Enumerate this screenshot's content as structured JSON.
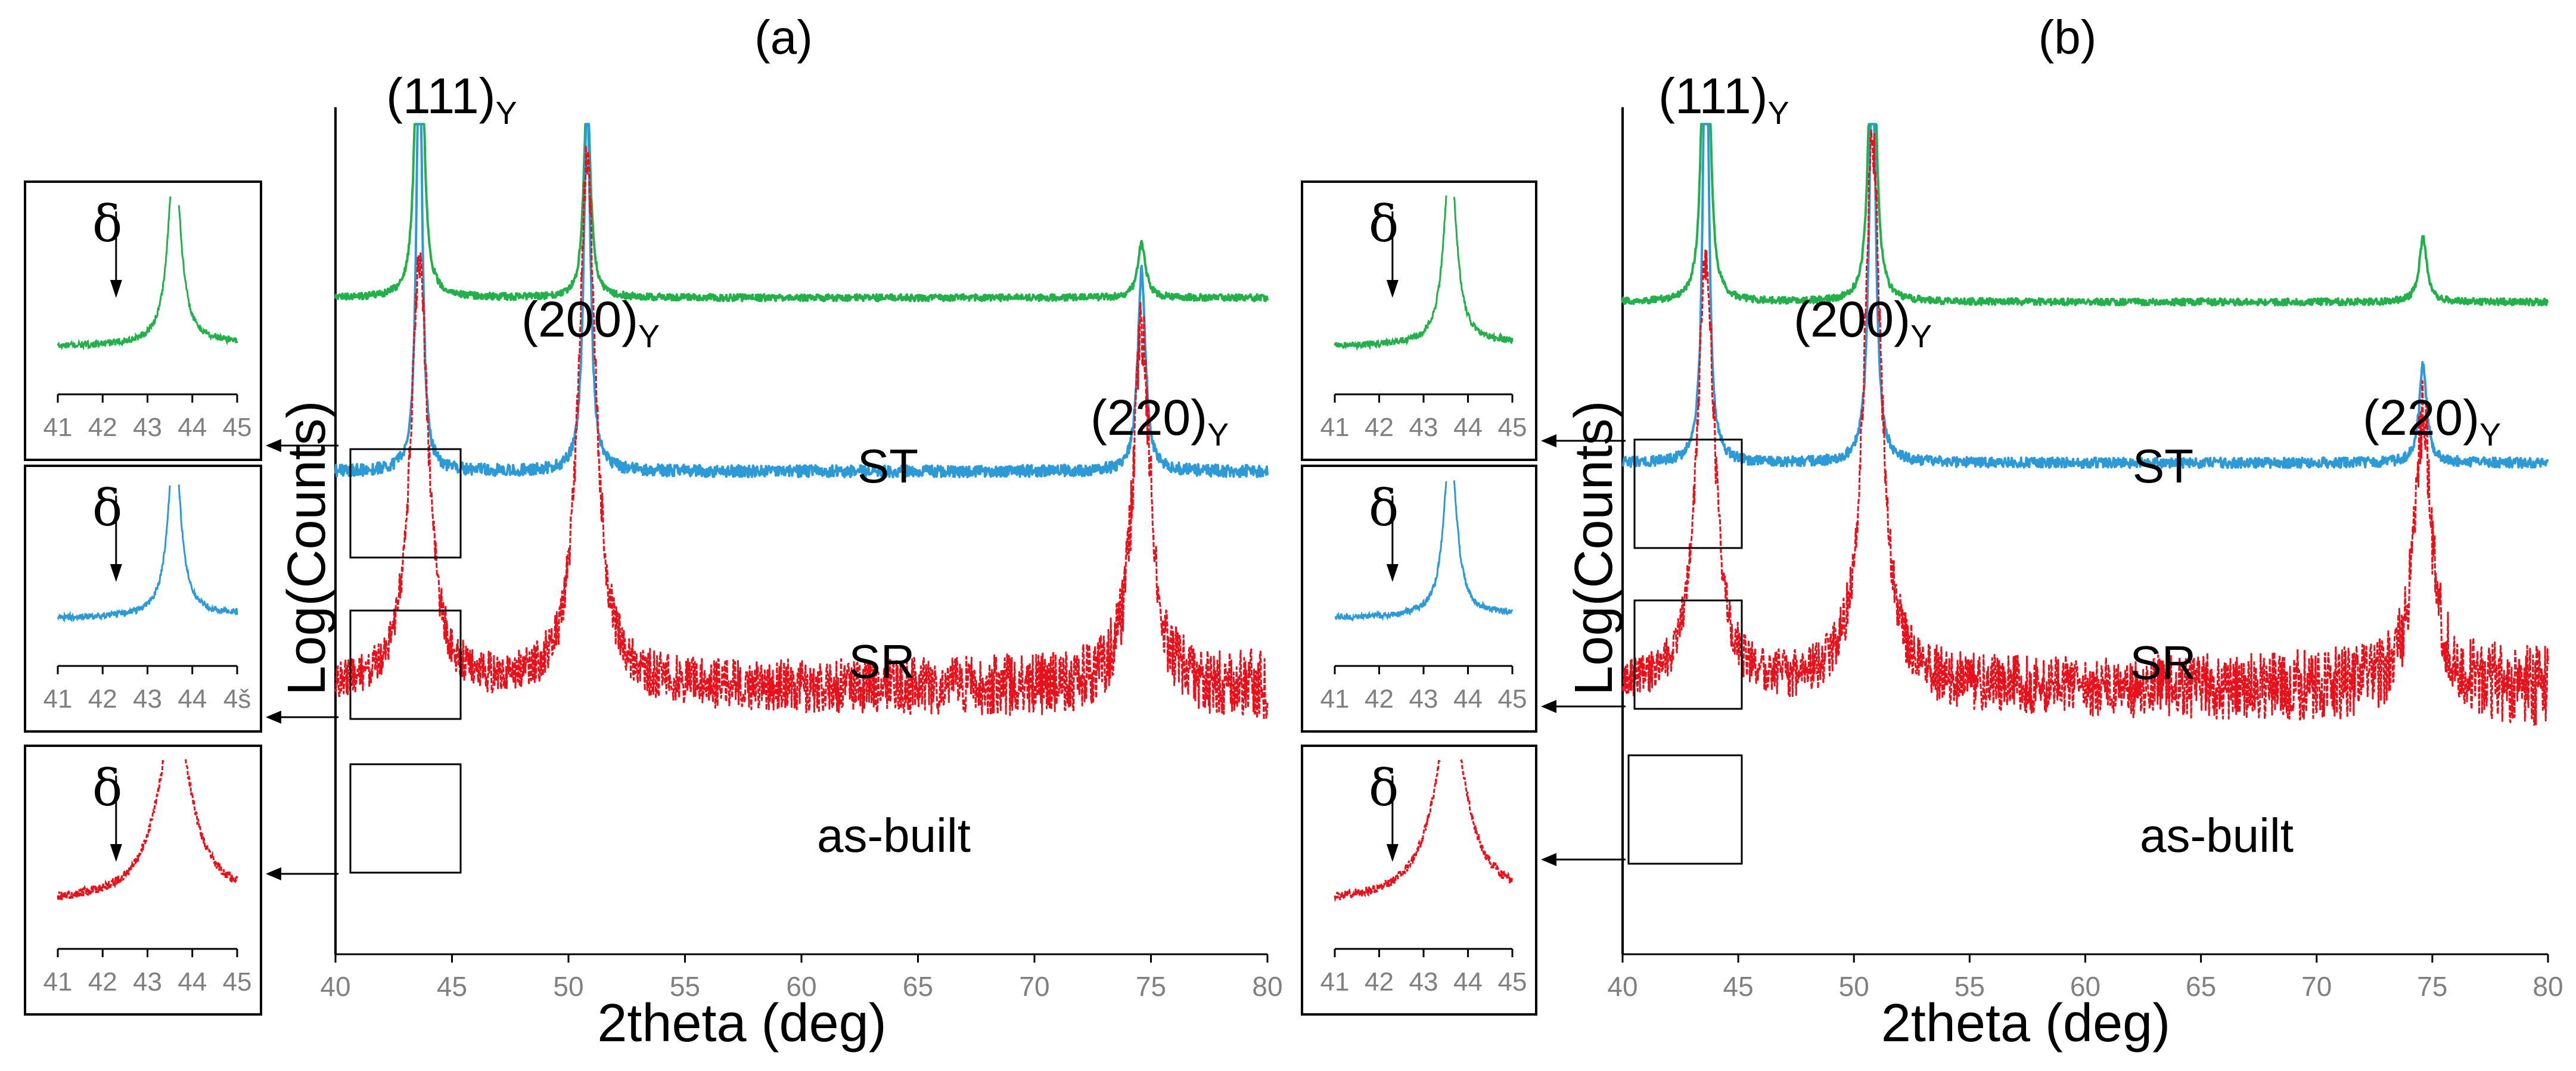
{
  "chart_data": [
    {
      "panel": "(a)",
      "type": "line",
      "xlabel": "2theta (deg)",
      "ylabel": "Log(Counts)",
      "xlim": [
        40,
        80
      ],
      "x_ticks": [
        "40",
        "45",
        "50",
        "55",
        "60",
        "65",
        "70",
        "75",
        "80"
      ],
      "y_scale": "log",
      "grid": false,
      "peaks": [
        {
          "name": "(111)",
          "sub": "Y",
          "x": 43.6
        },
        {
          "name": "(200)",
          "sub": "Y",
          "x": 50.8
        },
        {
          "name": "(220)",
          "sub": "Y",
          "x": 74.6
        }
      ],
      "series": [
        {
          "name": "ST",
          "color": "#22b04b",
          "baseline": 0.225,
          "noise": 0.004,
          "peaks": [
            {
              "x": 43.6,
              "h": 0.68,
              "w": 0.14
            },
            {
              "x": 50.8,
              "h": 0.25,
              "w": 0.17
            },
            {
              "x": 74.6,
              "h": 0.065,
              "w": 0.2
            }
          ]
        },
        {
          "name": "SR",
          "color": "#2c9ad6",
          "baseline": 0.43,
          "noise": 0.007,
          "peaks": [
            {
              "x": 43.6,
              "h": 0.56,
              "w": 0.14
            },
            {
              "x": 50.8,
              "h": 0.45,
              "w": 0.17
            },
            {
              "x": 74.6,
              "h": 0.24,
              "w": 0.2
            }
          ]
        },
        {
          "name": "as-built",
          "color": "#e8101a",
          "baseline": 0.685,
          "noise": 0.035,
          "dashed": true,
          "peaks": [
            {
              "x": 43.6,
              "h": 0.5,
              "w": 0.45
            },
            {
              "x": 50.8,
              "h": 0.62,
              "w": 0.45
            },
            {
              "x": 74.6,
              "h": 0.42,
              "w": 0.45
            }
          ]
        }
      ],
      "insets": [
        {
          "series": "ST",
          "annotation": "δ",
          "xlim": [
            41,
            45
          ],
          "x_ticks": [
            "41",
            "42",
            "43",
            "44",
            "45"
          ],
          "arrow_x": 42.3
        },
        {
          "series": "SR",
          "annotation": "δ",
          "xlim": [
            41,
            45
          ],
          "x_ticks": [
            "41",
            "42",
            "43",
            "44",
            "4š"
          ],
          "arrow_x": 42.3
        },
        {
          "series": "as-built",
          "annotation": "δ",
          "xlim": [
            41,
            45
          ],
          "x_ticks": [
            "41",
            "42",
            "43",
            "44",
            "45"
          ],
          "arrow_x": 42.3
        }
      ]
    },
    {
      "panel": "(b)",
      "type": "line",
      "xlabel": "2theta (deg)",
      "ylabel": "Log(Counts)",
      "xlim": [
        40,
        80
      ],
      "x_ticks": [
        "40",
        "45",
        "50",
        "55",
        "60",
        "65",
        "70",
        "75",
        "80"
      ],
      "y_scale": "log",
      "grid": false,
      "peaks": [
        {
          "name": "(111)",
          "sub": "Y",
          "x": 43.6
        },
        {
          "name": "(200)",
          "sub": "Y",
          "x": 50.8
        },
        {
          "name": "(220)",
          "sub": "Y",
          "x": 74.6
        }
      ],
      "series": [
        {
          "name": "ST",
          "color": "#22b04b",
          "baseline": 0.23,
          "noise": 0.004,
          "peaks": [
            {
              "x": 43.6,
              "h": 0.68,
              "w": 0.14
            },
            {
              "x": 50.8,
              "h": 0.43,
              "w": 0.17
            },
            {
              "x": 74.6,
              "h": 0.075,
              "w": 0.2
            }
          ]
        },
        {
          "name": "SR",
          "color": "#2c9ad6",
          "baseline": 0.42,
          "noise": 0.006,
          "peaks": [
            {
              "x": 43.6,
              "h": 0.62,
              "w": 0.14
            },
            {
              "x": 50.8,
              "h": 0.5,
              "w": 0.17
            },
            {
              "x": 74.6,
              "h": 0.115,
              "w": 0.2
            }
          ]
        },
        {
          "name": "as-built",
          "color": "#e8101a",
          "baseline": 0.685,
          "noise": 0.04,
          "dashed": true,
          "peaks": [
            {
              "x": 43.6,
              "h": 0.5,
              "w": 0.45
            },
            {
              "x": 50.8,
              "h": 0.64,
              "w": 0.45
            },
            {
              "x": 74.6,
              "h": 0.32,
              "w": 0.45
            }
          ]
        }
      ],
      "insets": [
        {
          "series": "ST",
          "annotation": "δ",
          "xlim": [
            41,
            45
          ],
          "x_ticks": [
            "41",
            "42",
            "43",
            "44",
            "45"
          ],
          "arrow_x": 42.3
        },
        {
          "series": "SR",
          "annotation": "δ",
          "xlim": [
            41,
            45
          ],
          "x_ticks": [
            "41",
            "42",
            "43",
            "44",
            "45"
          ],
          "arrow_x": 42.3
        },
        {
          "series": "as-built",
          "annotation": "δ",
          "xlim": [
            41,
            45
          ],
          "x_ticks": [
            "41",
            "42",
            "43",
            "44",
            "45"
          ],
          "arrow_x": 42.3
        }
      ]
    }
  ]
}
